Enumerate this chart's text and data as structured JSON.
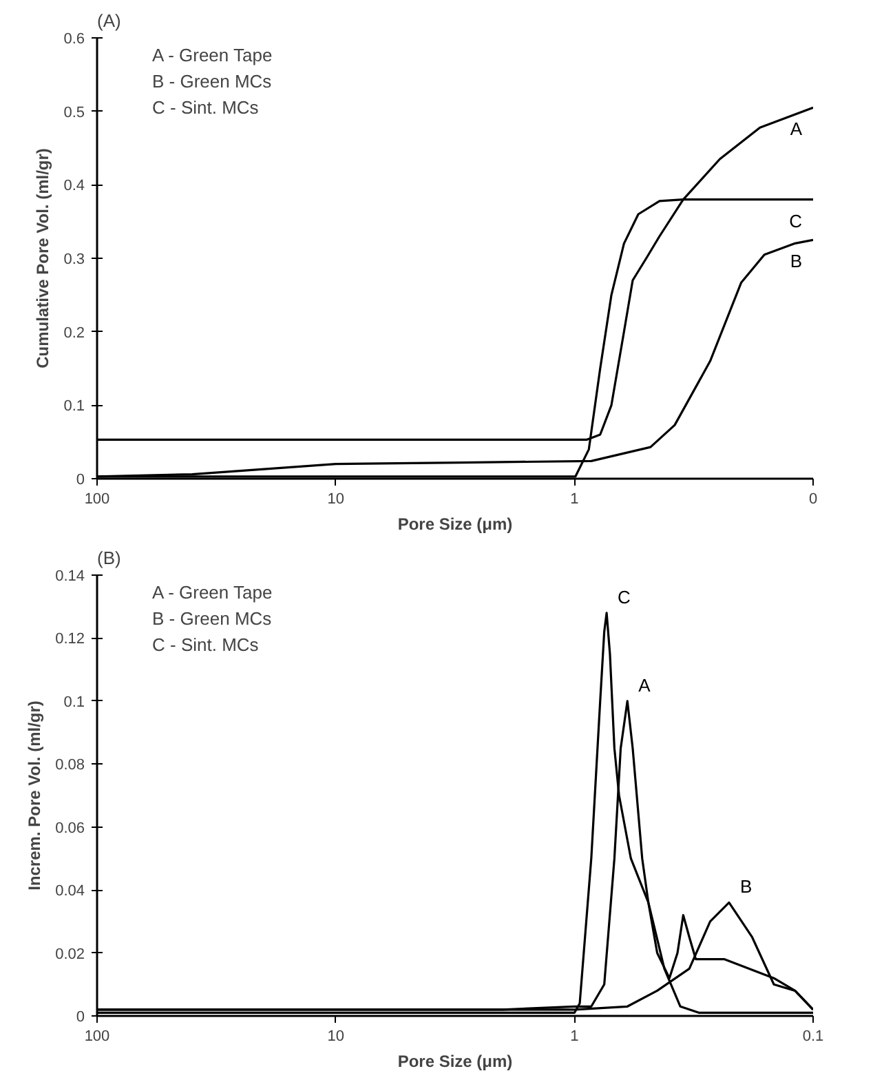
{
  "chart_data": [
    {
      "type": "line",
      "title": "(A)",
      "xlabel": "Pore Size (μm)",
      "ylabel": "Cumulative Pore Vol. (ml/gr)",
      "log": "x",
      "grid": false,
      "legend": false,
      "marker": "none",
      "line_style": "solid",
      "xlim": [
        100,
        0.1
      ],
      "xticks": [
        100,
        10,
        1,
        {
          "value": 0.1,
          "label": "0"
        }
      ],
      "ylim": [
        0,
        0.6
      ],
      "yticks": [
        0,
        0.1,
        0.2,
        0.3,
        0.4,
        0.5,
        0.6
      ],
      "annotations": [
        "A - Green Tape",
        "B - Green MCs",
        "C - Sint. MCs"
      ],
      "series": [
        {
          "name": "A",
          "color": "#000000",
          "x": [
            100,
            1.5,
            0.89,
            0.78,
            0.7,
            0.62,
            0.57,
            0.5,
            0.44,
            0.35,
            0.246,
            0.167,
            0.1
          ],
          "values": [
            0.053,
            0.053,
            0.053,
            0.06,
            0.1,
            0.2,
            0.27,
            0.3,
            0.33,
            0.38,
            0.435,
            0.478,
            0.505
          ]
        },
        {
          "name": "B",
          "color": "#000000",
          "x": [
            100,
            40,
            10,
            3,
            0.85,
            0.48,
            0.38,
            0.27,
            0.2,
            0.16,
            0.12,
            0.1
          ],
          "values": [
            0.003,
            0.006,
            0.02,
            0.022,
            0.024,
            0.043,
            0.073,
            0.16,
            0.267,
            0.305,
            0.32,
            0.325
          ]
        },
        {
          "name": "C",
          "color": "#000000",
          "x": [
            100,
            2,
            0.99,
            0.87,
            0.78,
            0.7,
            0.62,
            0.54,
            0.44,
            0.35,
            0.246,
            0.1
          ],
          "values": [
            0.003,
            0.003,
            0.003,
            0.04,
            0.15,
            0.25,
            0.32,
            0.36,
            0.378,
            0.38,
            0.38,
            0.38
          ]
        }
      ]
    },
    {
      "type": "line",
      "title": "(B)",
      "xlabel": "Pore Size (μm)",
      "ylabel": "Increm. Pore Vol. (ml/gr)",
      "log": "x",
      "grid": false,
      "legend": false,
      "marker": "none",
      "line_style": "solid",
      "xlim": [
        100,
        0.1
      ],
      "xticks": [
        100,
        10,
        1,
        0.1
      ],
      "ylim": [
        0,
        0.14
      ],
      "yticks": [
        0,
        0.02,
        0.04,
        0.06,
        0.08,
        0.1,
        0.12,
        0.14
      ],
      "annotations": [
        "A - Green Tape",
        "B - Green MCs",
        "C - Sint. MCs"
      ],
      "series": [
        {
          "name": "A",
          "color": "#000000",
          "x": [
            100,
            2,
            1,
            0.85,
            0.75,
            0.68,
            0.64,
            0.6,
            0.57,
            0.52,
            0.49,
            0.45,
            0.4,
            0.37,
            0.35,
            0.33,
            0.31,
            0.235,
            0.146,
            0.119,
            0.1
          ],
          "values": [
            0.002,
            0.002,
            0.003,
            0.003,
            0.01,
            0.05,
            0.085,
            0.1,
            0.085,
            0.05,
            0.036,
            0.02,
            0.012,
            0.02,
            0.032,
            0.025,
            0.018,
            0.018,
            0.012,
            0.008,
            0.002
          ]
        },
        {
          "name": "B",
          "color": "#000000",
          "x": [
            100,
            2,
            1,
            0.6,
            0.45,
            0.33,
            0.27,
            0.225,
            0.18,
            0.146,
            0.119,
            0.1
          ],
          "values": [
            0.002,
            0.002,
            0.002,
            0.003,
            0.008,
            0.015,
            0.03,
            0.036,
            0.025,
            0.01,
            0.008,
            0.002
          ]
        },
        {
          "name": "C",
          "color": "#000000",
          "x": [
            100,
            2,
            1,
            0.95,
            0.85,
            0.78,
            0.75,
            0.733,
            0.71,
            0.68,
            0.65,
            0.58,
            0.49,
            0.42,
            0.36,
            0.3,
            0.1
          ],
          "values": [
            0.001,
            0.001,
            0.001,
            0.004,
            0.05,
            0.1,
            0.122,
            0.128,
            0.115,
            0.085,
            0.07,
            0.05,
            0.036,
            0.015,
            0.003,
            0.001,
            0.001
          ]
        }
      ]
    }
  ]
}
